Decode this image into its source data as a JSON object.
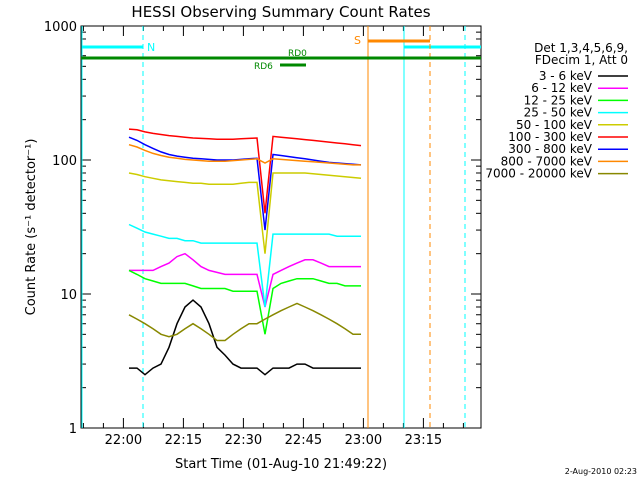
{
  "chart_data": {
    "type": "line",
    "title": "HESSI Observing Summary Count Rates",
    "xlabel": "Start Time (01-Aug-10 21:49:22)",
    "ylabel": "Count Rate (s⁻¹ detector⁻¹)",
    "x_units": "minutes after 21:49:22",
    "xlim": [
      0,
      100
    ],
    "ylim": [
      1,
      1000
    ],
    "yscale": "log",
    "x_ticks": [
      {
        "label": "22:00",
        "x": 10.6
      },
      {
        "label": "22:15",
        "x": 25.6
      },
      {
        "label": "22:30",
        "x": 40.6
      },
      {
        "label": "22:45",
        "x": 55.6
      },
      {
        "label": "23:00",
        "x": 70.6
      },
      {
        "label": "23:15",
        "x": 85.6
      }
    ],
    "y_ticks": [
      {
        "label": "1",
        "y": 1
      },
      {
        "label": "10",
        "y": 10
      },
      {
        "label": "100",
        "y": 100
      },
      {
        "label": "1000",
        "y": 1000
      }
    ],
    "legend": {
      "placement": "right",
      "header": [
        "Det 1,3,4,5,6,9,",
        "FDecim 1, Att 0"
      ]
    },
    "series": [
      {
        "name": "3 - 6 keV",
        "color": "#000000",
        "x": [
          12,
          14,
          16,
          18,
          20,
          22,
          24,
          26,
          28,
          30,
          32,
          34,
          36,
          38,
          40,
          42,
          44,
          46,
          48,
          50,
          52,
          54,
          56,
          58,
          60,
          62,
          64,
          66,
          68,
          70
        ],
        "y": [
          2.8,
          2.8,
          2.5,
          2.8,
          3.0,
          4.0,
          6.0,
          8.0,
          9.0,
          8.0,
          6.0,
          4.0,
          3.5,
          3.0,
          2.8,
          2.8,
          2.8,
          2.5,
          2.8,
          2.8,
          2.8,
          3.0,
          3.0,
          2.8,
          2.8,
          2.8,
          2.8,
          2.8,
          2.8,
          2.8
        ]
      },
      {
        "name": "6 - 12 keV",
        "color": "#ff00ff",
        "x": [
          12,
          14,
          16,
          18,
          20,
          22,
          24,
          26,
          28,
          30,
          32,
          34,
          36,
          38,
          40,
          42,
          44,
          46,
          48,
          50,
          52,
          54,
          56,
          58,
          60,
          62,
          64,
          66,
          68,
          70
        ],
        "y": [
          15,
          15,
          15,
          15,
          16,
          17,
          19,
          20,
          18,
          16,
          15,
          14.5,
          14,
          14,
          14,
          14,
          14,
          8,
          14,
          15,
          16,
          17,
          18,
          18,
          17,
          16,
          16,
          16,
          16,
          16
        ]
      },
      {
        "name": "12 - 25 keV",
        "color": "#00ff00",
        "x": [
          12,
          14,
          16,
          18,
          20,
          22,
          24,
          26,
          28,
          30,
          32,
          34,
          36,
          38,
          40,
          42,
          44,
          46,
          48,
          50,
          52,
          54,
          56,
          58,
          60,
          62,
          64,
          66,
          68,
          70
        ],
        "y": [
          15,
          14,
          13,
          12.5,
          12,
          12,
          12,
          12,
          11.5,
          11,
          11,
          11,
          11,
          10.5,
          10.5,
          10.5,
          10.5,
          5.0,
          11,
          12,
          12.5,
          13,
          13,
          13,
          12.5,
          12,
          12,
          11.5,
          11.5,
          11.5
        ]
      },
      {
        "name": "25 - 50 keV",
        "color": "#00ffff",
        "x": [
          12,
          14,
          16,
          18,
          20,
          22,
          24,
          26,
          28,
          30,
          32,
          34,
          36,
          38,
          40,
          42,
          44,
          46,
          48,
          50,
          52,
          54,
          56,
          58,
          60,
          62,
          64,
          66,
          68,
          70
        ],
        "y": [
          33,
          31,
          29,
          28,
          27,
          26,
          26,
          25,
          25,
          24,
          24,
          24,
          24,
          24,
          24,
          24,
          24,
          8.0,
          28,
          28,
          28,
          28,
          28,
          28,
          28,
          28,
          27,
          27,
          27,
          27
        ]
      },
      {
        "name": "50 - 100 keV",
        "color": "#cccc00",
        "x": [
          12,
          14,
          16,
          18,
          20,
          22,
          24,
          26,
          28,
          30,
          32,
          34,
          36,
          38,
          40,
          42,
          44,
          46,
          48,
          50,
          52,
          54,
          56,
          58,
          60,
          62,
          64,
          66,
          68,
          70
        ],
        "y": [
          80,
          78,
          75,
          73,
          71,
          70,
          69,
          68,
          67,
          67,
          66,
          66,
          66,
          66,
          67,
          68,
          68,
          20,
          80,
          80,
          80,
          80,
          80,
          79,
          78,
          77,
          76,
          75,
          74,
          73
        ]
      },
      {
        "name": "100 - 300 keV",
        "color": "#ff0000",
        "x": [
          12,
          14,
          16,
          18,
          20,
          22,
          24,
          26,
          28,
          30,
          32,
          34,
          36,
          38,
          40,
          42,
          44,
          46,
          48,
          50,
          52,
          54,
          56,
          58,
          60,
          62,
          64,
          66,
          68,
          70
        ],
        "y": [
          170,
          168,
          162,
          158,
          155,
          152,
          150,
          148,
          146,
          145,
          144,
          143,
          143,
          143,
          144,
          145,
          146,
          40,
          150,
          148,
          146,
          144,
          142,
          140,
          138,
          136,
          134,
          132,
          130,
          128
        ]
      },
      {
        "name": "300 - 800 keV",
        "color": "#0000ff",
        "x": [
          12,
          14,
          16,
          18,
          20,
          22,
          24,
          26,
          28,
          30,
          32,
          34,
          36,
          38,
          40,
          42,
          44,
          46,
          48,
          50,
          52,
          54,
          56,
          58,
          60,
          62,
          64,
          66,
          68,
          70
        ],
        "y": [
          148,
          140,
          130,
          122,
          115,
          110,
          107,
          105,
          103,
          102,
          101,
          100,
          100,
          100,
          101,
          102,
          103,
          30,
          110,
          108,
          106,
          104,
          102,
          100,
          98,
          96,
          95,
          94,
          93,
          92
        ]
      },
      {
        "name": "800 - 7000 keV",
        "color": "#ff8800",
        "x": [
          12,
          14,
          16,
          18,
          20,
          22,
          24,
          26,
          28,
          30,
          32,
          34,
          36,
          38,
          40,
          42,
          44,
          46,
          48,
          50,
          52,
          54,
          56,
          58,
          60,
          62,
          64,
          66,
          68,
          70
        ],
        "y": [
          130,
          125,
          118,
          112,
          108,
          105,
          103,
          101,
          100,
          99,
          98,
          98,
          98,
          99,
          100,
          101,
          102,
          95,
          102,
          101,
          100,
          99,
          98,
          97,
          96,
          95,
          94,
          93,
          92,
          92
        ]
      },
      {
        "name": "7000 - 20000 keV",
        "color": "#888800",
        "x": [
          12,
          14,
          16,
          18,
          20,
          22,
          24,
          26,
          28,
          30,
          32,
          34,
          36,
          38,
          40,
          42,
          44,
          46,
          48,
          50,
          52,
          54,
          56,
          58,
          60,
          62,
          64,
          66,
          68,
          70
        ],
        "y": [
          7.0,
          6.5,
          6.0,
          5.5,
          5.0,
          4.8,
          5.0,
          5.5,
          6.0,
          5.5,
          5.0,
          4.5,
          4.5,
          5.0,
          5.5,
          6.0,
          6.0,
          6.5,
          7.0,
          7.5,
          8.0,
          8.5,
          8.0,
          7.5,
          7.0,
          6.5,
          6.0,
          5.5,
          5.0,
          5.0
        ]
      }
    ],
    "annotations": {
      "night_label": "N",
      "saa_label": "S",
      "rd0_label": "RD0",
      "rd6_label": "RD6"
    }
  },
  "footer": {
    "timestamp": "2-Aug-2010 02:23"
  }
}
